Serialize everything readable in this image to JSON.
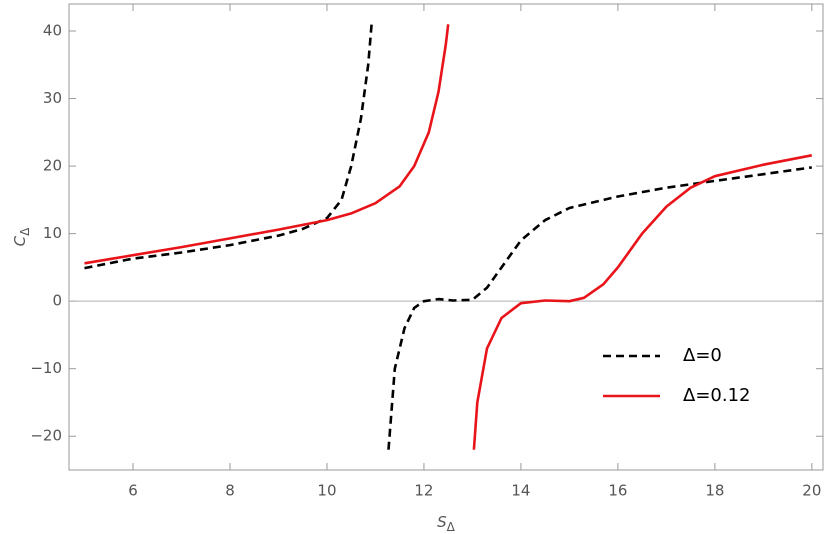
{
  "chart_data": {
    "type": "line",
    "x_label": "S",
    "x_label_sub": "Δ",
    "y_label": "C",
    "y_label_sub": "Δ",
    "xlim": [
      4.68,
      20.23
    ],
    "ylim": [
      -25,
      44
    ],
    "xticks": [
      6,
      8,
      10,
      12,
      14,
      16,
      18,
      20
    ],
    "yticks": [
      {
        "value": -20,
        "label": "−20"
      },
      {
        "value": -10,
        "label": "−10"
      },
      0,
      10,
      20,
      30,
      40
    ],
    "legend": "lower right",
    "series": [
      {
        "name": "Δ=0",
        "color": "#000000",
        "dashed": true,
        "x": [
          5,
          6,
          7,
          8,
          9,
          9.5,
          10,
          10.3,
          10.5,
          10.7,
          10.85,
          10.92,
          null,
          11.27,
          11.4,
          11.6,
          11.8,
          12,
          12.3,
          12.6,
          13,
          13.3,
          13.7,
          14,
          14.5,
          15,
          16,
          17,
          18,
          19,
          20
        ],
        "values": [
          4.9,
          6.3,
          7.2,
          8.3,
          9.7,
          10.7,
          12.3,
          15,
          20,
          27,
          35,
          41,
          null,
          -22,
          -10,
          -4,
          -1,
          0,
          0.3,
          0.1,
          0.2,
          2,
          6,
          9,
          12,
          13.8,
          15.5,
          16.8,
          17.8,
          18.8,
          19.8
        ]
      },
      {
        "name": "Δ=0.12",
        "color": "#e8141a",
        "dashed": false,
        "x": [
          5,
          6,
          7,
          8,
          9,
          10,
          10.5,
          11,
          11.5,
          11.8,
          12.1,
          12.3,
          12.45,
          12.5,
          null,
          13.03,
          13.1,
          13.3,
          13.6,
          14,
          14.5,
          15,
          15.3,
          15.7,
          16,
          16.5,
          17,
          17.5,
          18,
          19,
          20
        ],
        "values": [
          5.6,
          6.8,
          8,
          9.3,
          10.6,
          12,
          13,
          14.5,
          17,
          20,
          25,
          31,
          38,
          41,
          null,
          -22,
          -15,
          -7,
          -2.5,
          -0.3,
          0.1,
          0,
          0.5,
          2.5,
          5,
          10,
          14,
          16.8,
          18.5,
          20.2,
          21.6
        ]
      }
    ]
  }
}
